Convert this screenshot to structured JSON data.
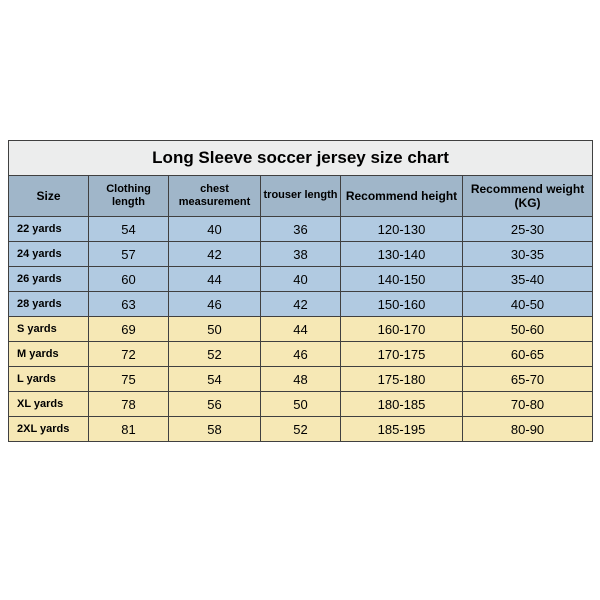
{
  "table": {
    "title": "Long Sleeve soccer jersey size chart",
    "columns": [
      "Size",
      "Clothing length",
      "chest measurement",
      "trouser length",
      "Recommend height",
      "Recommend weight (KG)"
    ],
    "col_widths": [
      "80",
      "80",
      "92",
      "80",
      "122",
      "130"
    ],
    "header_bg": "#a0b6c9",
    "row_colors": {
      "blue": "#b1cae1",
      "yellow": "#f6e8b5"
    },
    "rows": [
      {
        "color": "blue",
        "cells": [
          "22 yards",
          "54",
          "40",
          "36",
          "120-130",
          "25-30"
        ]
      },
      {
        "color": "blue",
        "cells": [
          "24 yards",
          "57",
          "42",
          "38",
          "130-140",
          "30-35"
        ]
      },
      {
        "color": "blue",
        "cells": [
          "26 yards",
          "60",
          "44",
          "40",
          "140-150",
          "35-40"
        ]
      },
      {
        "color": "blue",
        "cells": [
          "28 yards",
          "63",
          "46",
          "42",
          "150-160",
          "40-50"
        ]
      },
      {
        "color": "yellow",
        "cells": [
          "S yards",
          "69",
          "50",
          "44",
          "160-170",
          "50-60"
        ]
      },
      {
        "color": "yellow",
        "cells": [
          "M yards",
          "72",
          "52",
          "46",
          "170-175",
          "60-65"
        ]
      },
      {
        "color": "yellow",
        "cells": [
          "L yards",
          "75",
          "54",
          "48",
          "175-180",
          "65-70"
        ]
      },
      {
        "color": "yellow",
        "cells": [
          "XL yards",
          "78",
          "56",
          "50",
          "180-185",
          "70-80"
        ]
      },
      {
        "color": "yellow",
        "cells": [
          "2XL yards",
          "81",
          "58",
          "52",
          "185-195",
          "80-90"
        ]
      }
    ]
  }
}
